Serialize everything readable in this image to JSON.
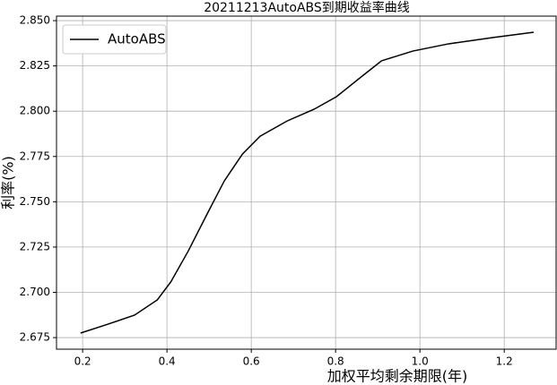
{
  "chart_data": {
    "type": "line",
    "title": "20211213AutoABS到期收益率曲线",
    "x_label": "加权平均剩余期限(年)",
    "y_label": "利率(%)",
    "x": [
      0.195,
      0.26,
      0.323,
      0.377,
      0.409,
      0.451,
      0.494,
      0.536,
      0.579,
      0.621,
      0.685,
      0.749,
      0.802,
      0.855,
      0.909,
      0.983,
      1.068,
      1.174,
      1.27
    ],
    "series": [
      {
        "name": "AutoABS",
        "color": "#000000",
        "values": [
          2.6775,
          2.6824,
          2.6874,
          2.6958,
          2.7057,
          2.723,
          2.7427,
          2.7615,
          2.7763,
          2.7862,
          2.7946,
          2.8011,
          2.808,
          2.8179,
          2.8278,
          2.8332,
          2.8372,
          2.8407,
          2.8436
        ]
      }
    ],
    "xlim": [
      0.138,
      1.323
    ],
    "xticks": [
      {
        "value": 0.2,
        "label": "0.2"
      },
      {
        "value": 0.4,
        "label": "0.4"
      },
      {
        "value": 0.6,
        "label": "0.6"
      },
      {
        "value": 0.8,
        "label": "0.8"
      },
      {
        "value": 1,
        "label": "1.0"
      },
      {
        "value": 1.2,
        "label": "1.2"
      }
    ],
    "ylim": [
      2.6686,
      2.8525
    ],
    "yticks": [
      2.675,
      {
        "value": 2.7,
        "label": "2.700"
      },
      2.725,
      {
        "value": 2.75,
        "label": "2.750"
      },
      2.775,
      {
        "value": 2.8,
        "label": "2.800"
      },
      2.825,
      {
        "value": 2.85,
        "label": "2.850"
      }
    ],
    "grid": true,
    "legend": "upper left"
  }
}
